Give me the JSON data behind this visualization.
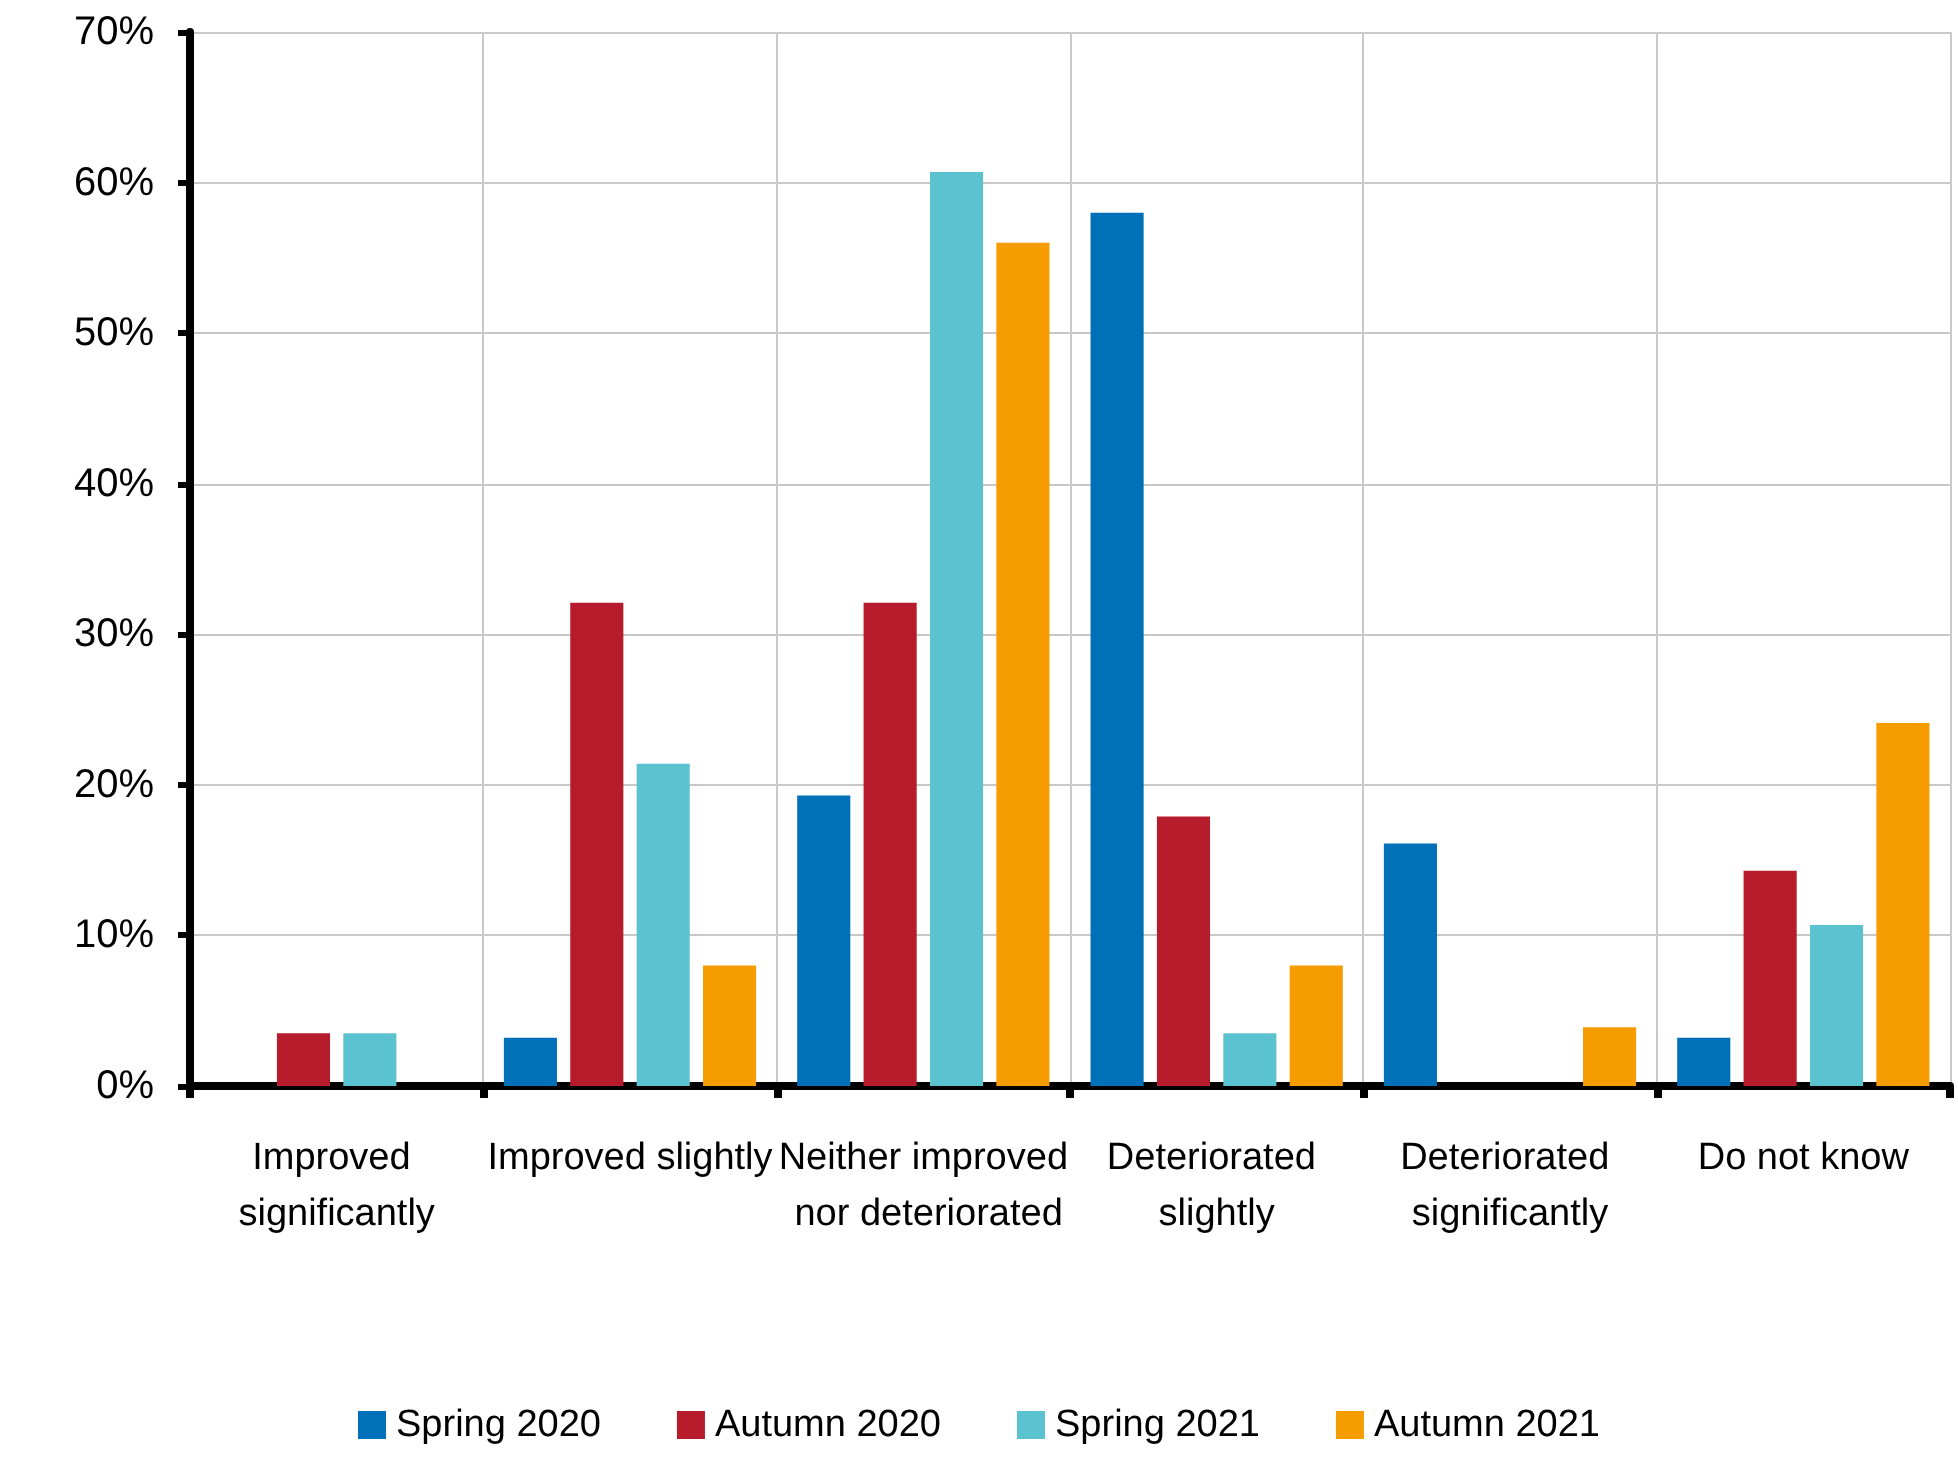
{
  "chart_data": {
    "type": "bar",
    "categories": [
      "Improved significantly",
      "Improved slightly",
      "Neither improved nor deteriorated",
      "Deteriorated slightly",
      "Deteriorated significantly",
      "Do not know"
    ],
    "series": [
      {
        "name": "Spring 2020",
        "color": "#0070b8",
        "values": [
          0,
          3.2,
          19.3,
          58.0,
          16.1,
          3.2
        ]
      },
      {
        "name": "Autumn 2020",
        "color": "#b71c2c",
        "values": [
          3.5,
          32.1,
          32.1,
          17.9,
          0,
          14.3
        ]
      },
      {
        "name": "Spring 2021",
        "color": "#5bc2d0",
        "values": [
          3.5,
          21.4,
          60.7,
          3.5,
          0,
          10.7
        ]
      },
      {
        "name": "Autumn 2021",
        "color": "#f59c00",
        "values": [
          0,
          8.0,
          56.0,
          8.0,
          3.9,
          24.1
        ]
      }
    ],
    "ylim": [
      0,
      70
    ],
    "yticks": [
      {
        "value": 0,
        "label": "0%"
      },
      {
        "value": 10,
        "label": "10%"
      },
      {
        "value": 20,
        "label": "20%"
      },
      {
        "value": 30,
        "label": "30%"
      },
      {
        "value": 40,
        "label": "40%"
      },
      {
        "value": 50,
        "label": "50%"
      },
      {
        "value": 60,
        "label": "60%"
      },
      {
        "value": 70,
        "label": "70%"
      }
    ],
    "grid": true,
    "legend": "bottom"
  }
}
